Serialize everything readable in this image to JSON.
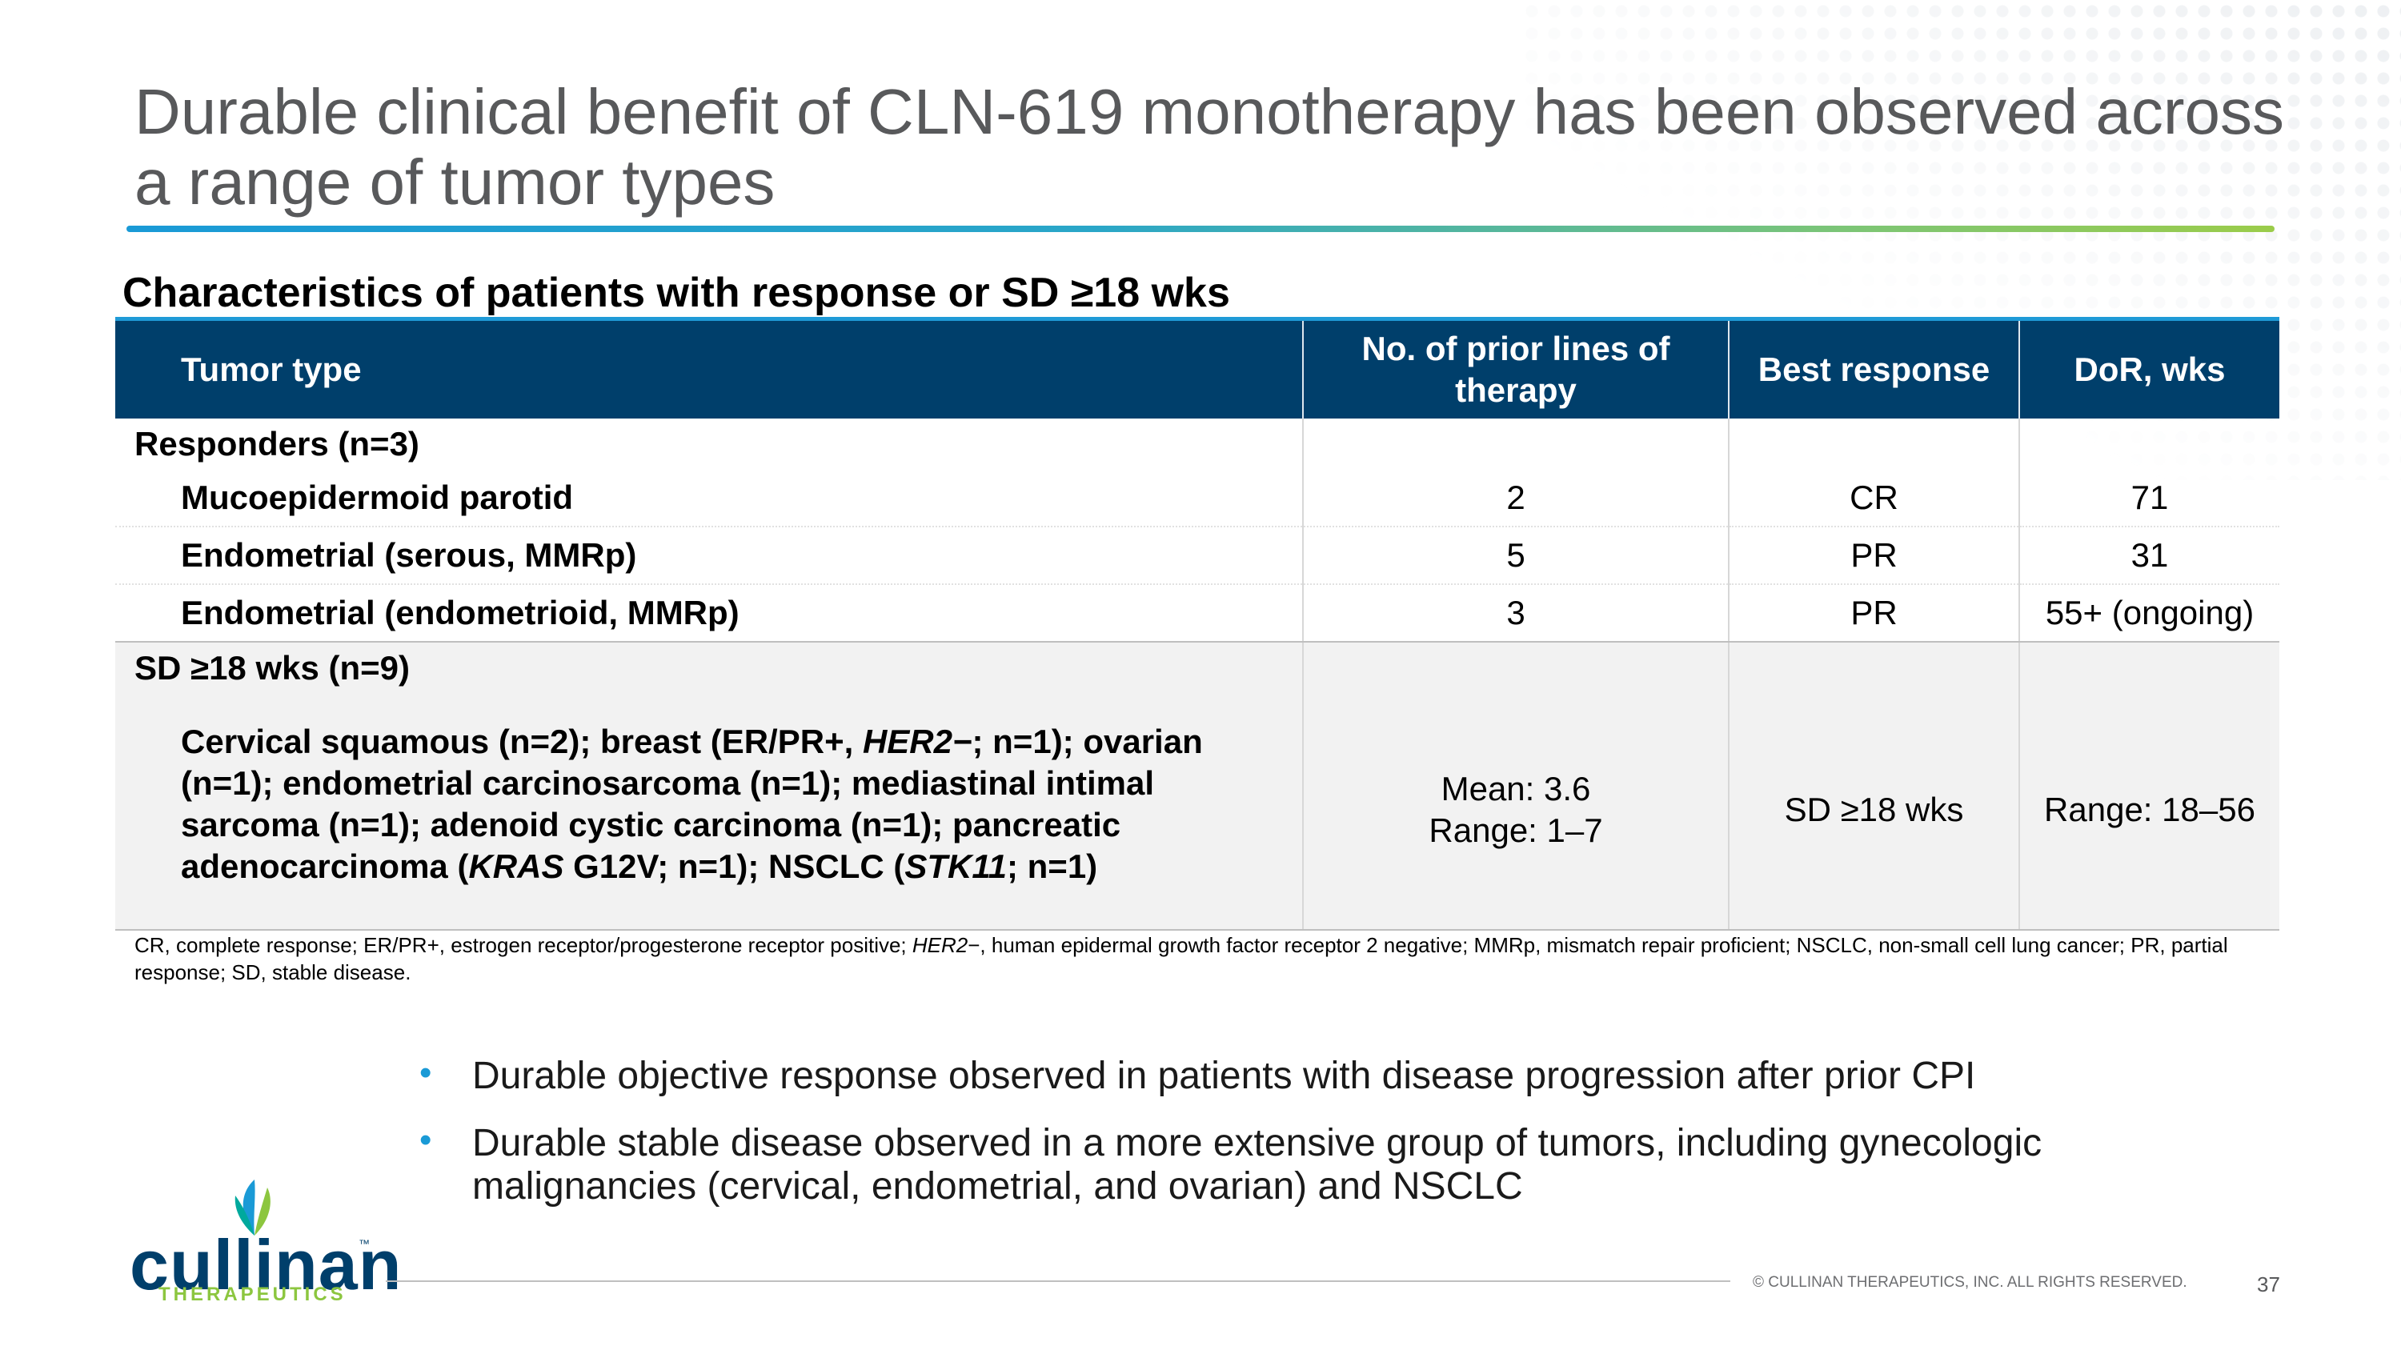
{
  "slide": {
    "title": "Durable clinical benefit of CLN-619 monotherapy has been observed across a range of tumor types",
    "subtitle": "Characteristics of patients with response or SD ≥18 wks"
  },
  "table": {
    "headers": [
      "Tumor type",
      "No. of prior lines of therapy",
      "Best response",
      "DoR, wks"
    ],
    "responders_label": "Responders (n=3)",
    "responders": [
      {
        "tumor": "Mucoepidermoid parotid",
        "lines": "2",
        "response": "CR",
        "dor": "71"
      },
      {
        "tumor": "Endometrial (serous, MMRp)",
        "lines": "5",
        "response": "PR",
        "dor": "31"
      },
      {
        "tumor": "Endometrial (endometrioid, MMRp)",
        "lines": "3",
        "response": "PR",
        "dor": "55+ (ongoing)"
      }
    ],
    "sd_label": "SD ≥18 wks (n=9)",
    "sd": {
      "text_parts": [
        "Cervical squamous (n=2); breast (ER/PR+, ",
        "HER2−",
        "; n=1); ovarian (n=1); endometrial carcinosarcoma (n=1); mediastinal intimal sarcoma (n=1); adenoid cystic carcinoma (n=1); pancreatic adenocarcinoma (",
        "KRAS",
        " G12V; n=1); NSCLC (",
        "STK11",
        "; n=1)"
      ],
      "lines_mean": "Mean: 3.6",
      "lines_range": "Range: 1–7",
      "response": "SD ≥18 wks",
      "dor": "Range: 18–56"
    }
  },
  "footnote": {
    "part1": "CR, complete response; ER/PR+, estrogen receptor/progesterone receptor positive; ",
    "italic": "HER2",
    "part2": "−, human epidermal growth factor receptor 2 negative; MMRp, mismatch repair proficient; NSCLC, non-small cell lung cancer; PR, partial response; SD, stable disease."
  },
  "bullets": [
    "Durable objective response observed in patients with disease progression after prior CPI",
    "Durable stable disease observed in a more extensive group of tumors, including gynecologic malignancies (cervical, endometrial, and ovarian) and NSCLC"
  ],
  "bullet_glyph": "•",
  "logo": {
    "name": "cullinan",
    "trademark": "™",
    "tagline": "THERAPEUTICS"
  },
  "footer": {
    "copyright": "© CULLINAN THERAPEUTICS, INC. ALL RIGHTS RESERVED.",
    "page_number": "37"
  },
  "colors": {
    "header_bg": "#003f6b",
    "accent_blue": "#1a9ad6",
    "accent_green": "#8cc63f",
    "title_gray": "#58595b"
  }
}
